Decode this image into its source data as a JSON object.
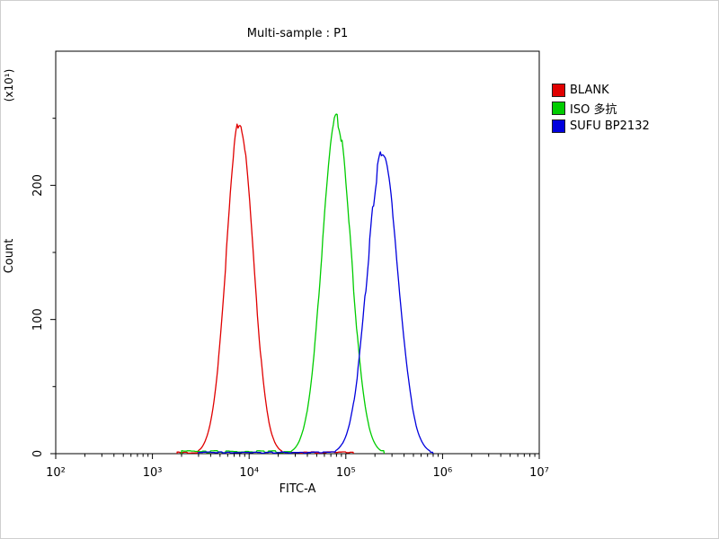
{
  "chart": {
    "title": "Multi-sample : P1",
    "xlabel": "FITC-A",
    "ylabel": "Count",
    "ylabel_scale": "(x10¹)"
  },
  "chart_data": {
    "type": "line",
    "subtype": "flow-cytometry-overlay-histogram",
    "title": "Multi-sample : P1",
    "xlabel": "FITC-A",
    "ylabel": "Count (x10¹)",
    "x_scale": "log10",
    "x_range": [
      100,
      10000000
    ],
    "x_tick_labels": [
      "10²",
      "10³",
      "10⁴",
      "10⁵",
      "10⁶",
      "10⁷"
    ],
    "y_range": [
      0,
      300
    ],
    "y_ticks": [
      0,
      100,
      200
    ],
    "y_minor_ticks": [
      50,
      150,
      250
    ],
    "grid": false,
    "legend_position": "right-top",
    "series": [
      {
        "name": "BLANK",
        "color": "#e00000",
        "peak_x": 8000,
        "peak_count": 245,
        "sigma_decades": 0.14,
        "range": [
          1800,
          120000
        ],
        "baseline_count": 1.0
      },
      {
        "name": "ISO 多抗",
        "color": "#00cc00",
        "peak_x": 80000,
        "peak_count": 248,
        "sigma_decades": 0.15,
        "range": [
          2000,
          250000
        ],
        "baseline_count": 1.6
      },
      {
        "name": "SUFU BP2132",
        "color": "#0000dd",
        "peak_x": 240000,
        "peak_count": 222,
        "sigma_decades": 0.16,
        "range": [
          3000,
          800000
        ],
        "baseline_count": 1.0
      }
    ]
  }
}
